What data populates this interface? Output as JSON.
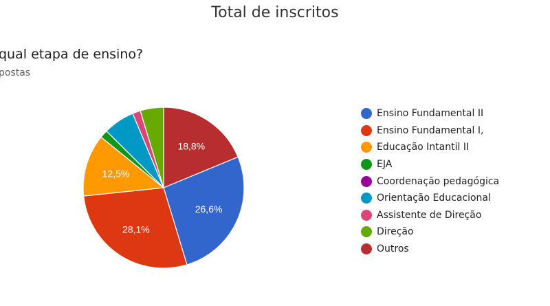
{
  "header": {
    "title": "Total de inscritos",
    "question": "qual etapa de ensino?",
    "responses": "postas"
  },
  "chart_data": {
    "type": "pie",
    "categories": [
      "Ensino Fundamental II",
      "Ensino Fundamental I,",
      "Educação Intantil II",
      "EJA",
      "Coordenação pedagógica",
      "Orientação Educacional",
      "Assistente de Direção",
      "Direção",
      "Outros"
    ],
    "values": [
      26.6,
      28.1,
      12.5,
      1.6,
      0,
      6.3,
      1.6,
      4.7,
      18.8
    ],
    "labels": [
      "26,6%",
      "28,1%",
      "12,5%",
      "",
      "",
      "",
      "",
      "",
      "18,8%"
    ],
    "colors": [
      "#3366cc",
      "#dc3912",
      "#ff9900",
      "#109618",
      "#990099",
      "#0099c6",
      "#dd4477",
      "#66aa00",
      "#b82e2e"
    ],
    "legend_position": "right"
  }
}
